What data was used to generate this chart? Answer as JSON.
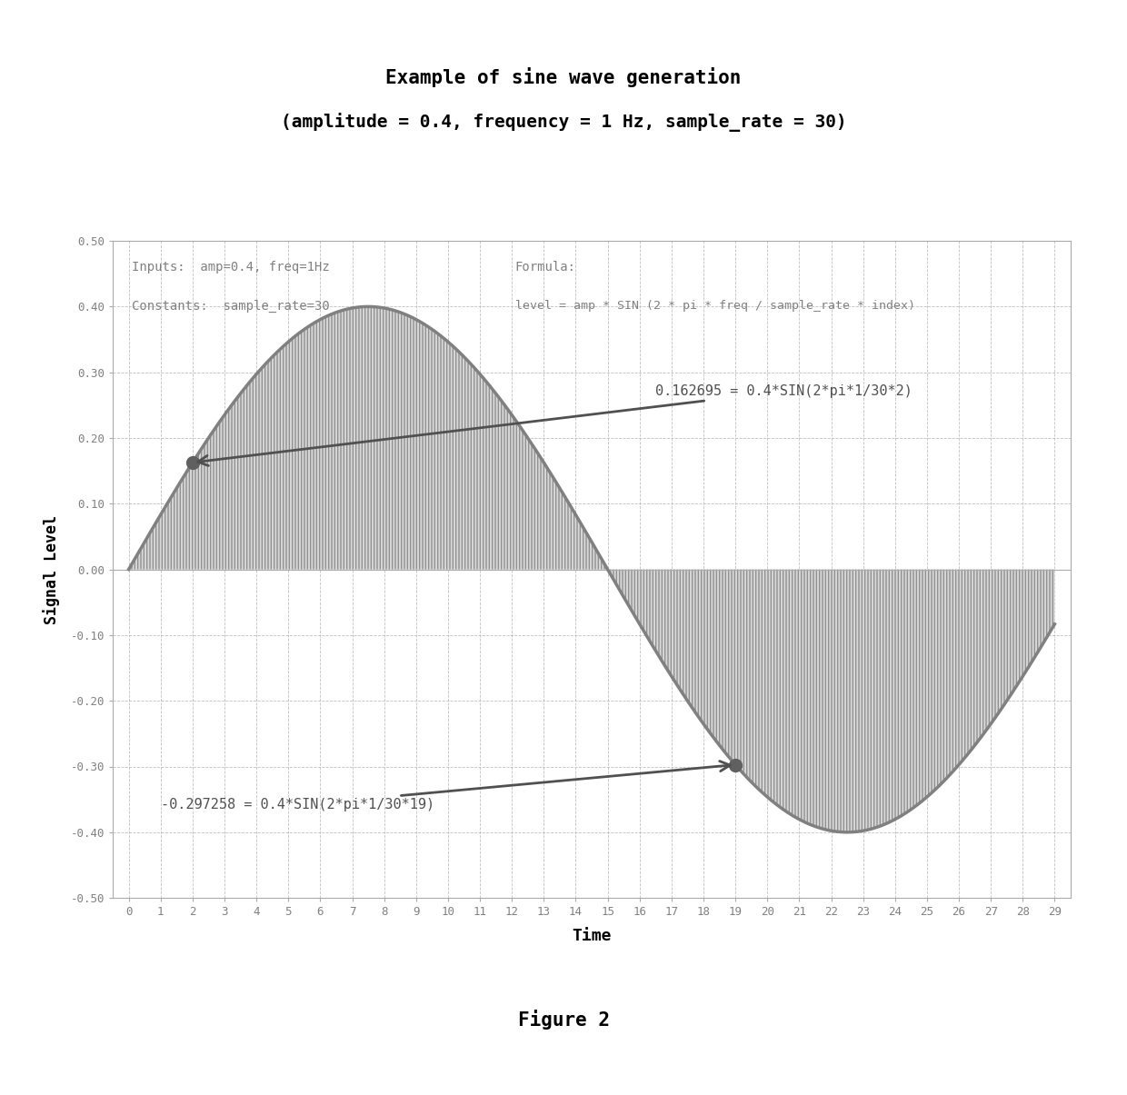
{
  "title_line1": "Example of sine wave generation",
  "title_line2": "(amplitude = 0.4, frequency = 1 Hz, sample_rate = 30)",
  "xlabel": "Time",
  "ylabel": "Signal Level",
  "figure_label": "Figure 2",
  "amplitude": 0.4,
  "frequency": 1,
  "sample_rate": 30,
  "n_samples": 30,
  "ylim": [
    -0.5,
    0.5
  ],
  "yticks": [
    -0.5,
    -0.4,
    -0.3,
    -0.2,
    -0.1,
    0.0,
    0.1,
    0.2,
    0.3,
    0.4,
    0.5
  ],
  "xlim": [
    -0.5,
    29.5
  ],
  "annotation1_text": "0.162695 = 0.4*SIN(2*pi*1/30*2)",
  "annotation1_index": 2,
  "annotation2_text": "-0.297258 = 0.4*SIN(2*pi*1/30*19)",
  "annotation2_index": 19,
  "info_text1": "Inputs:  amp=0.4, freq=1Hz",
  "info_text2": "Constants:  sample_rate=30",
  "formula_text1": "Formula:",
  "formula_text2": "level = amp * SIN (2 * pi * freq / sample_rate * index)",
  "line_color": "#808080",
  "fill_color_positive": "#c0c0c0",
  "fill_color_negative": "#c0c0c0",
  "hatch_pattern": "|||",
  "grid_color": "#b0b0b0",
  "dot_color": "#606060",
  "bg_color": "#ffffff",
  "text_color": "#808080",
  "annotation_color": "#505050",
  "title_color": "#000000"
}
